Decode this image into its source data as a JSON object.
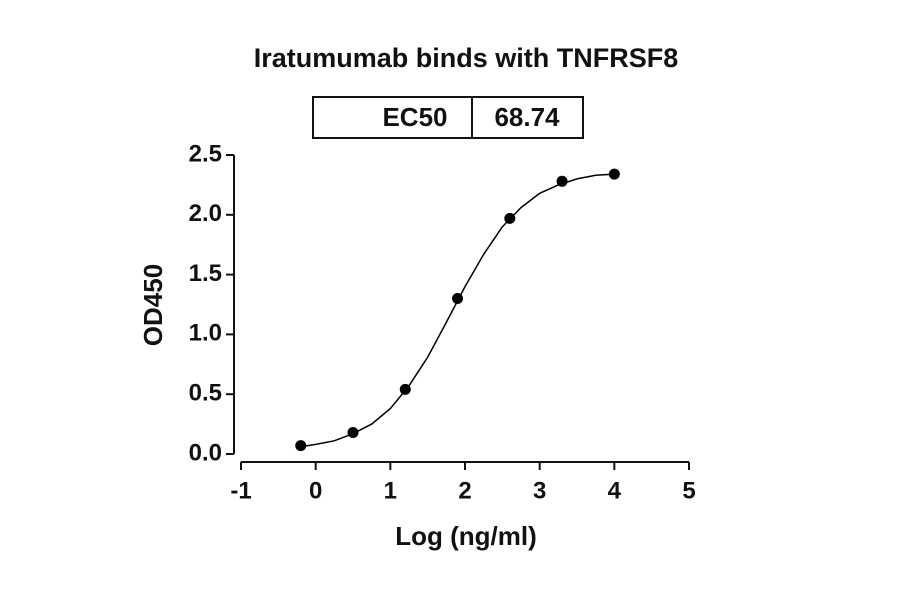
{
  "chart_data": {
    "type": "scatter",
    "title": "Iratumumab binds with TNFRSF8",
    "annotation": {
      "label": "EC50",
      "value": "68.74"
    },
    "x_label": "Log (ng/ml)",
    "y_label": "OD450",
    "points": {
      "x": [
        -0.2,
        0.5,
        1.2,
        1.9,
        2.6,
        3.3,
        4.0
      ],
      "y": [
        0.07,
        0.18,
        0.54,
        1.3,
        1.97,
        2.28,
        2.34
      ],
      "color": "#000000"
    },
    "curve": {
      "x": [
        -0.2,
        0,
        0.25,
        0.5,
        0.75,
        1,
        1.25,
        1.5,
        1.75,
        2,
        2.25,
        2.5,
        2.75,
        3,
        3.25,
        3.5,
        3.75,
        4
      ],
      "y": [
        0.06,
        0.08,
        0.11,
        0.17,
        0.25,
        0.38,
        0.57,
        0.81,
        1.1,
        1.4,
        1.67,
        1.9,
        2.06,
        2.18,
        2.25,
        2.3,
        2.33,
        2.34
      ],
      "color": "#000000"
    },
    "xlim": [
      -1,
      5
    ],
    "xticks": [
      -1,
      0,
      1,
      2,
      3,
      4,
      5
    ],
    "ylim": [
      0,
      2.5
    ],
    "yticks": [
      {
        "value": 0,
        "label": "0.0"
      },
      {
        "value": 0.5,
        "label": "0.5"
      },
      {
        "value": 1,
        "label": "1.0"
      },
      {
        "value": 1.5,
        "label": "1.5"
      },
      {
        "value": 2,
        "label": "2.0"
      },
      {
        "value": 2.5,
        "label": "2.5"
      }
    ],
    "grid": false
  }
}
